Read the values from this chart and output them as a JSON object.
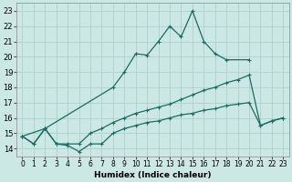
{
  "xlabel": "Humidex (Indice chaleur)",
  "xlim": [
    -0.5,
    23.5
  ],
  "ylim": [
    13.5,
    23.5
  ],
  "xticks": [
    0,
    1,
    2,
    3,
    4,
    5,
    6,
    7,
    8,
    9,
    10,
    11,
    12,
    13,
    14,
    15,
    16,
    17,
    18,
    19,
    20,
    21,
    22,
    23
  ],
  "yticks": [
    14,
    15,
    16,
    17,
    18,
    19,
    20,
    21,
    22,
    23
  ],
  "background_color": "#cce8e4",
  "grid_color": "#b0d0cc",
  "line_color": "#1a6b63",
  "s1_x": [
    0,
    2,
    8,
    9,
    10,
    11,
    12,
    13,
    14,
    15,
    16,
    17,
    18,
    20
  ],
  "s1_y": [
    14.8,
    15.3,
    18.0,
    19.0,
    20.2,
    20.1,
    21.0,
    22.0,
    21.3,
    23.0,
    21.0,
    20.2,
    19.8,
    19.8
  ],
  "s2_x": [
    0,
    1,
    2,
    3,
    4,
    5,
    6,
    7,
    8,
    9,
    10,
    11,
    12,
    13,
    14,
    15,
    16,
    17,
    18,
    19,
    20,
    21,
    22,
    23
  ],
  "s2_y": [
    14.8,
    14.3,
    15.3,
    14.3,
    14.3,
    14.3,
    15.0,
    15.3,
    15.7,
    16.0,
    16.3,
    16.5,
    16.7,
    16.9,
    17.2,
    17.5,
    17.8,
    18.0,
    18.3,
    18.5,
    18.8,
    15.5,
    15.8,
    16.0
  ],
  "s3_x": [
    0,
    1,
    2,
    3,
    4,
    5,
    6,
    7,
    8,
    9,
    10,
    11,
    12,
    13,
    14,
    15,
    16,
    17,
    18,
    19,
    20,
    21,
    22,
    23
  ],
  "s3_y": [
    14.8,
    14.3,
    15.3,
    14.3,
    14.2,
    13.8,
    14.3,
    14.3,
    15.0,
    15.3,
    15.5,
    15.7,
    15.8,
    16.0,
    16.2,
    16.3,
    16.5,
    16.6,
    16.8,
    16.9,
    17.0,
    15.5,
    15.8,
    16.0
  ]
}
